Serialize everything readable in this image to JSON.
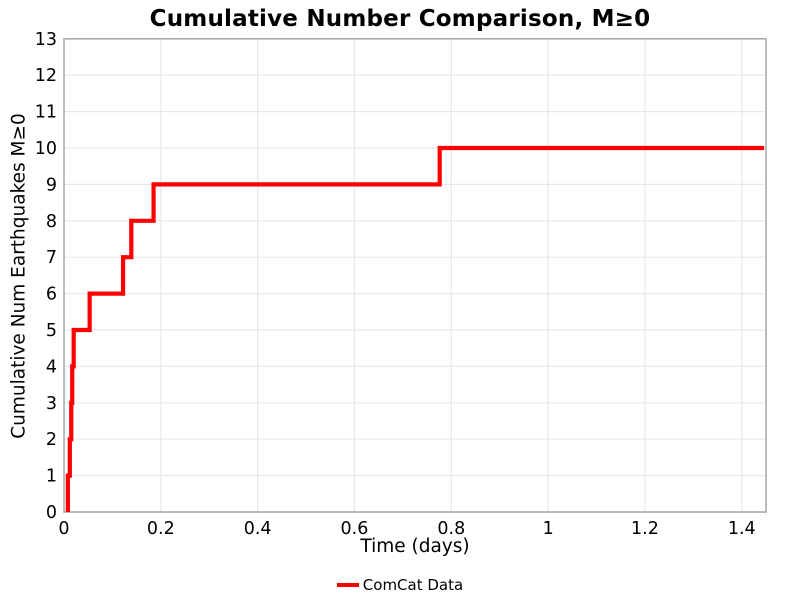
{
  "chart_data": {
    "type": "line",
    "subtype": "cumulative-step",
    "title": "Cumulative Number Comparison, M≥0",
    "xlabel": "Time (days)",
    "ylabel": "Cumulative Num Earthquakes M≥0",
    "grid": true,
    "legend_position": "bottom-center",
    "xlim": [
      0,
      1.45
    ],
    "ylim": [
      0,
      13
    ],
    "xticks": [
      0,
      0.2,
      0.4,
      0.6,
      0.8,
      1,
      1.2,
      1.4
    ],
    "xtick_labels": [
      "0",
      "0.2",
      "0.4",
      "0.6",
      "0.8",
      "1",
      "1.2",
      "1.4"
    ],
    "yticks": [
      0,
      1,
      2,
      3,
      4,
      5,
      6,
      7,
      8,
      9,
      10,
      11,
      12,
      13
    ],
    "ytick_labels": [
      "0",
      "1",
      "2",
      "3",
      "4",
      "5",
      "6",
      "7",
      "8",
      "9",
      "10",
      "11",
      "12",
      "13"
    ],
    "series": [
      {
        "name": "ComCat Data",
        "color": "#ff0000",
        "line_width": 4.2,
        "event_times_days": [
          0.008,
          0.012,
          0.015,
          0.017,
          0.02,
          0.053,
          0.122,
          0.139,
          0.185,
          0.776
        ],
        "cumulative_counts": [
          1,
          2,
          3,
          4,
          5,
          6,
          7,
          8,
          9,
          10
        ],
        "line_end_time_days": 1.446
      }
    ],
    "colors": {
      "background": "#ffffff",
      "grid": "#e8e8e8",
      "spine": "#ababab",
      "text": "#000000",
      "accent": "#ff0000"
    }
  }
}
